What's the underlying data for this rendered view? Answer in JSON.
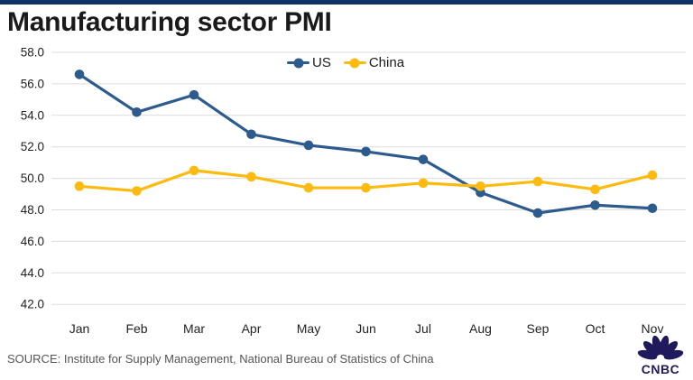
{
  "page": {
    "accent_bar_color": "#0f3365",
    "background_color": "#ffffff"
  },
  "header": {
    "title": "Manufacturing sector PMI"
  },
  "chart_data": {
    "type": "line",
    "title": "Manufacturing sector PMI",
    "categories": [
      "Jan",
      "Feb",
      "Mar",
      "Apr",
      "May",
      "Jun",
      "Jul",
      "Aug",
      "Sep",
      "Oct",
      "Nov"
    ],
    "series": [
      {
        "name": "US",
        "color": "#2e5b8e",
        "values": [
          56.6,
          54.2,
          55.3,
          52.8,
          52.1,
          51.7,
          51.2,
          49.1,
          47.8,
          48.3,
          48.1
        ]
      },
      {
        "name": "China",
        "color": "#fdbb12",
        "values": [
          49.5,
          49.2,
          50.5,
          50.1,
          49.4,
          49.4,
          49.7,
          49.5,
          49.8,
          49.3,
          50.2
        ]
      }
    ],
    "xlabel": "",
    "ylabel": "",
    "ylim": [
      42.0,
      58.0
    ],
    "ytick_step": 2.0,
    "yticks": [
      "58.0",
      "56.0",
      "54.0",
      "52.0",
      "50.0",
      "48.0",
      "46.0",
      "44.0",
      "42.0"
    ],
    "grid": "horizontal",
    "gridline_color": "#dcdcdc",
    "tick_label_color": "#222222",
    "legend_position": "top-center",
    "legend": [
      {
        "label": "US",
        "color": "#2e5b8e"
      },
      {
        "label": "China",
        "color": "#fdbb12"
      }
    ]
  },
  "footer": {
    "source": "SOURCE: Institute for Supply Management, National Bureau of Statistics of China",
    "logo_text": "CNBC",
    "logo_color": "#1e1a5c"
  }
}
